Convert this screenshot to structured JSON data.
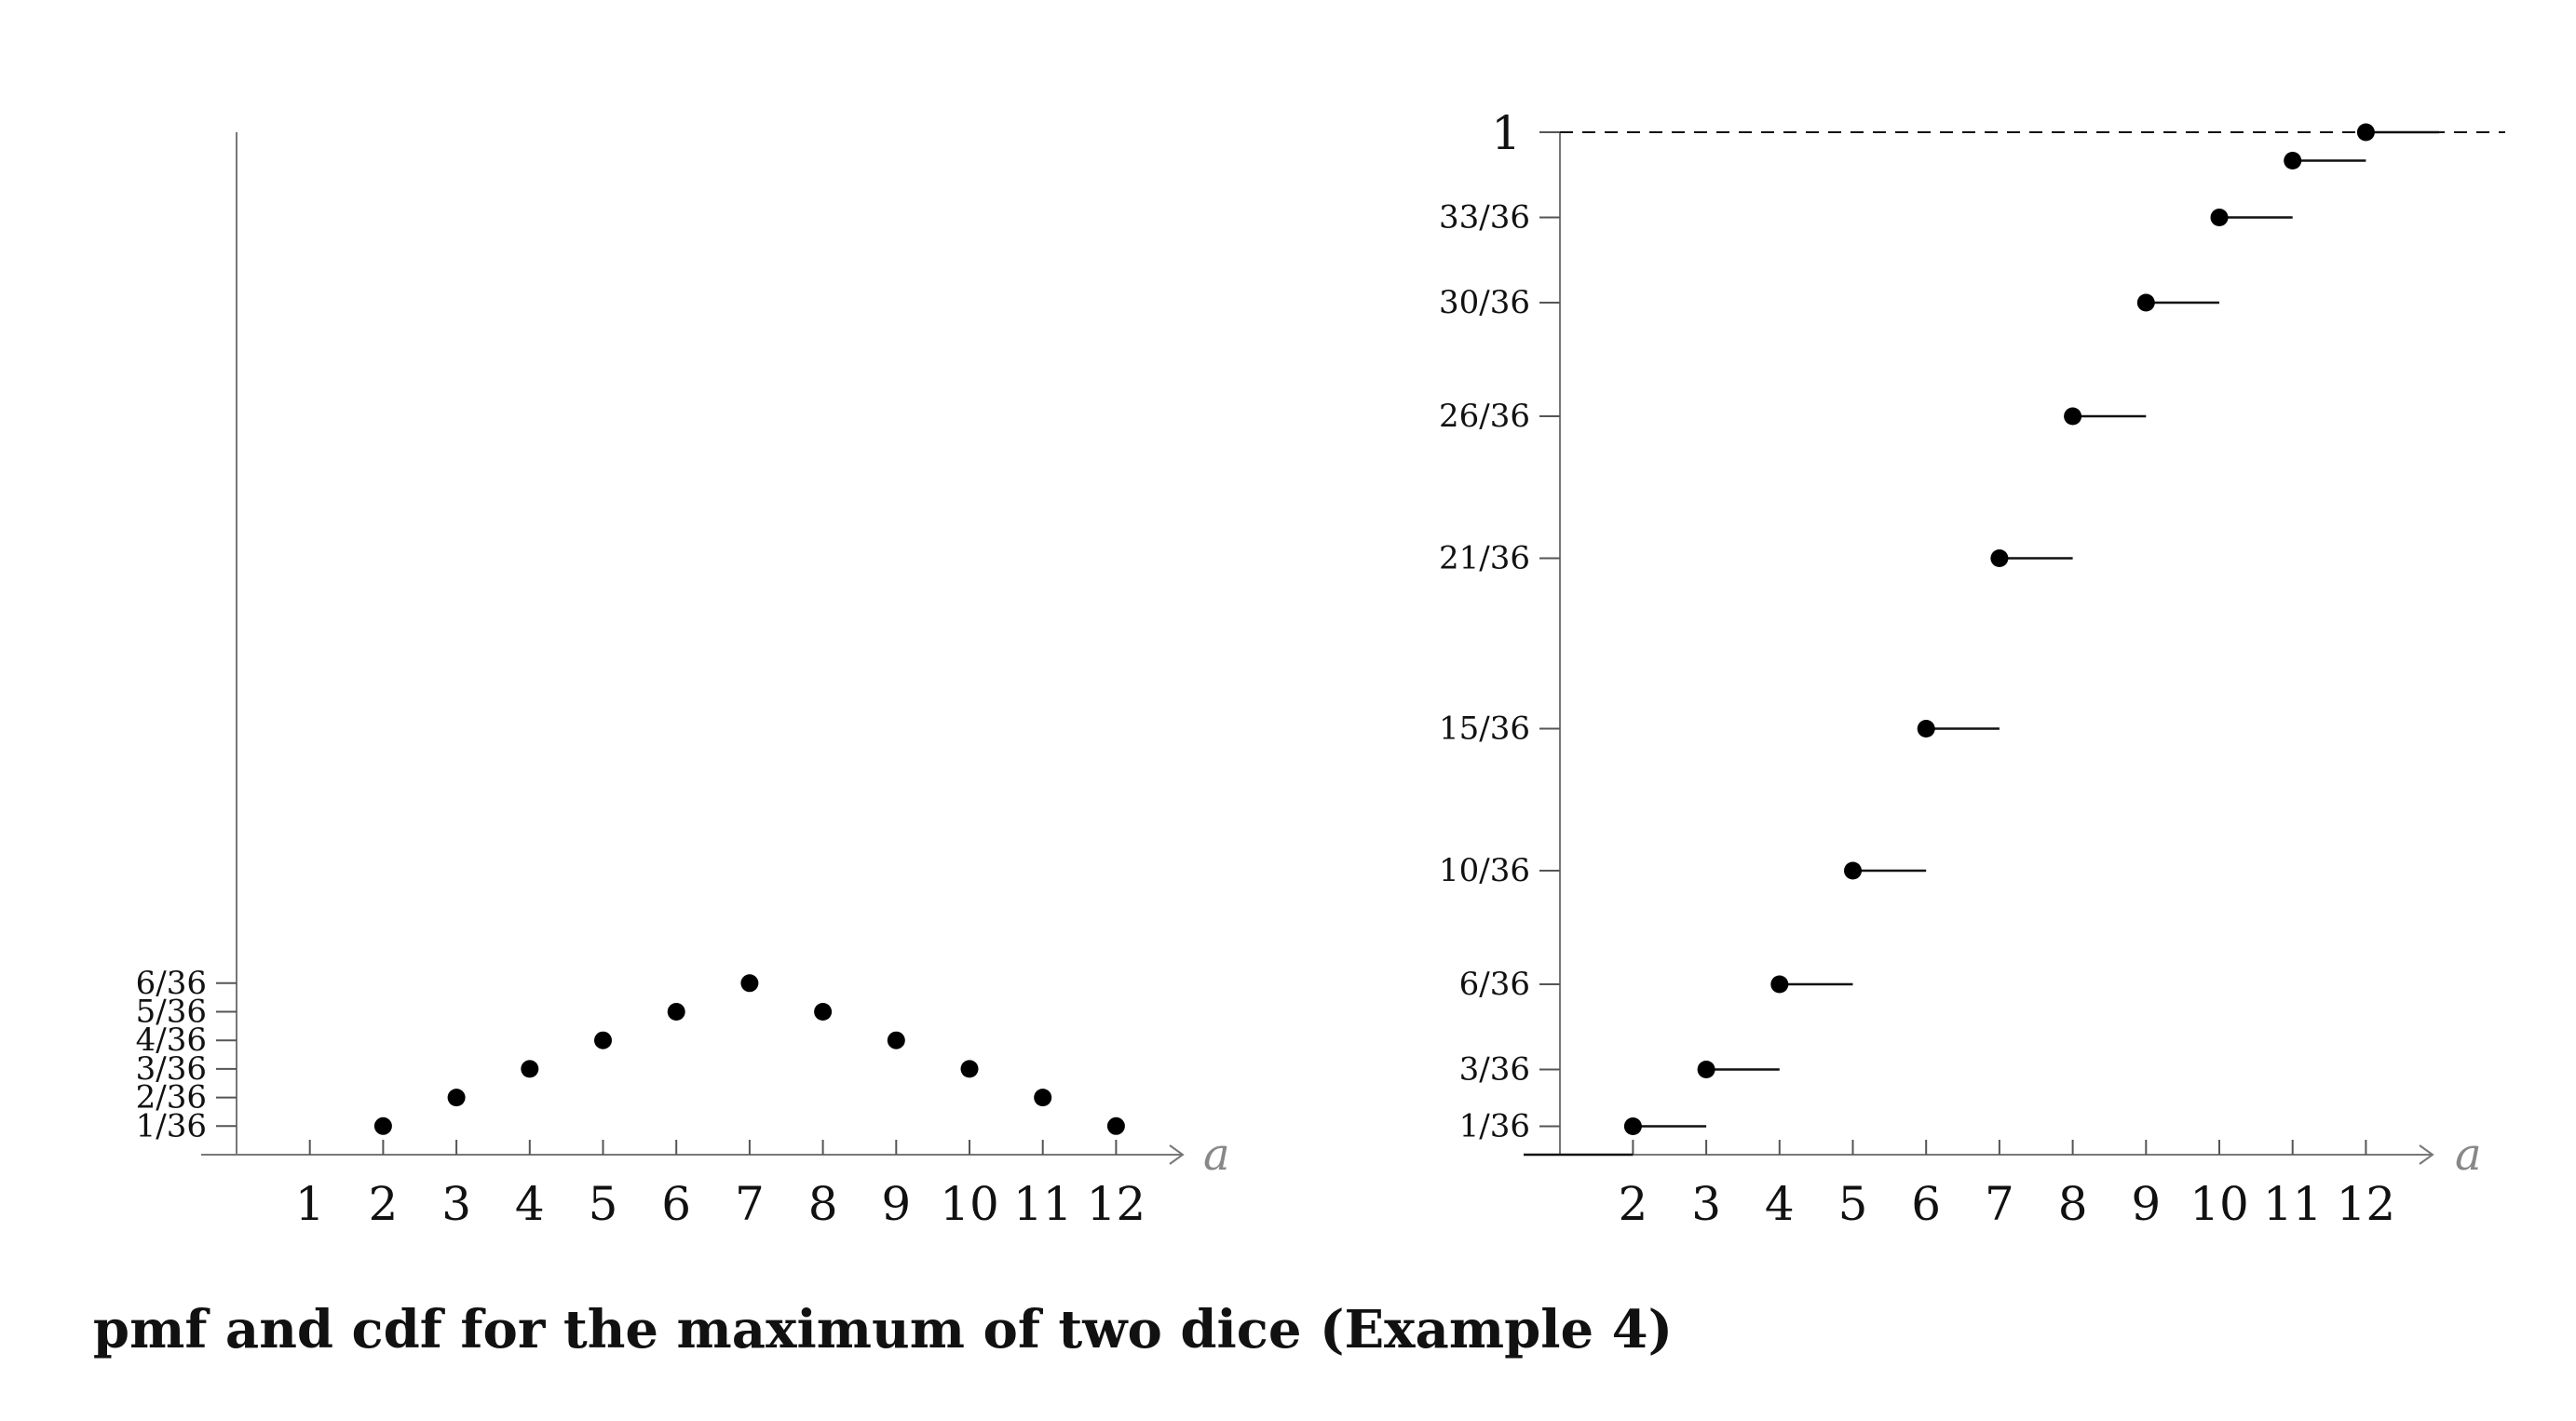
{
  "caption": "pmf and cdf for the maximum of two dice (Example 4)",
  "chart_data": [
    {
      "type": "scatter",
      "xlabel": "a",
      "ylabel": "",
      "xticks": [
        "1",
        "2",
        "3",
        "4",
        "5",
        "6",
        "7",
        "8",
        "9",
        "10",
        "11",
        "12"
      ],
      "yticks": [
        "1/36",
        "2/36",
        "3/36",
        "4/36",
        "5/36",
        "6/36"
      ],
      "xlim": [
        0,
        13
      ],
      "ylim": [
        0,
        36
      ],
      "series": [
        {
          "x": [
            2,
            3,
            4,
            5,
            6,
            7,
            8,
            9,
            10,
            11,
            12
          ],
          "y": [
            1,
            2,
            3,
            4,
            5,
            6,
            5,
            4,
            3,
            2,
            1
          ],
          "y_denominator": 36
        }
      ]
    },
    {
      "type": "line",
      "step": true,
      "xlabel": "a",
      "ylabel": "",
      "xticks": [
        "2",
        "3",
        "4",
        "5",
        "6",
        "7",
        "8",
        "9",
        "10",
        "11",
        "12"
      ],
      "yticks": [
        "1/36",
        "3/36",
        "6/36",
        "10/36",
        "15/36",
        "21/36",
        "26/36",
        "30/36",
        "33/36",
        "1"
      ],
      "xlim": [
        0.5,
        13
      ],
      "ylim": [
        0,
        36
      ],
      "reference_line": {
        "y": 36,
        "style": "dashed"
      },
      "series": [
        {
          "x": [
            2,
            3,
            4,
            5,
            6,
            7,
            8,
            9,
            10,
            11,
            12
          ],
          "y": [
            1,
            3,
            6,
            10,
            15,
            21,
            26,
            30,
            33,
            35,
            36
          ],
          "y_denominator": 36
        }
      ]
    }
  ]
}
